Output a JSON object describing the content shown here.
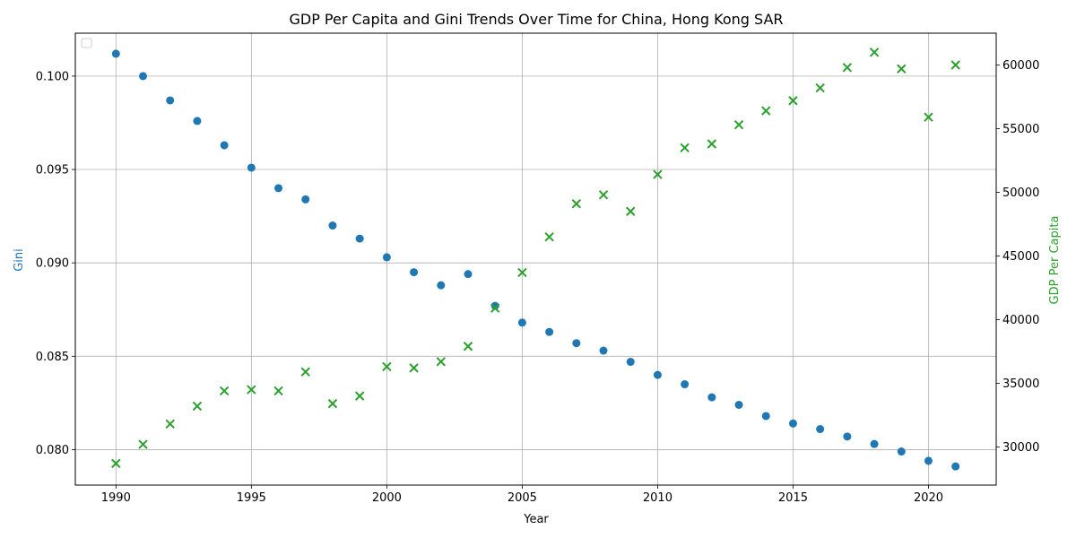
{
  "chart_data": {
    "type": "scatter",
    "title": "GDP Per Capita and Gini Trends Over Time for China, Hong Kong SAR",
    "xlabel": "Year",
    "ylabel_left": "Gini",
    "ylabel_right": "GDP Per Capita",
    "xlim": [
      1988.5,
      2022.5
    ],
    "ylim_left": [
      0.0781,
      0.1023
    ],
    "ylim_right": [
      27000,
      62500
    ],
    "x_ticks": [
      1990,
      1995,
      2000,
      2005,
      2010,
      2015,
      2020
    ],
    "y_left_ticks": [
      0.08,
      0.085,
      0.09,
      0.095,
      0.1
    ],
    "y_left_tick_labels": [
      "0.080",
      "0.085",
      "0.090",
      "0.095",
      "0.100"
    ],
    "y_right_ticks": [
      30000,
      35000,
      40000,
      45000,
      50000,
      55000,
      60000
    ],
    "y_right_tick_labels": [
      "30000",
      "35000",
      "40000",
      "45000",
      "50000",
      "55000",
      "60000"
    ],
    "grid": true,
    "legend": "top-left (empty)",
    "colors": {
      "gini": "#1f77b4",
      "gdp": "#2ca02c",
      "left_label": "#1f77b4",
      "right_label": "#2ca02c"
    },
    "series": [
      {
        "marker": "circle",
        "axis": "left",
        "x": [
          1990,
          1991,
          1992,
          1993,
          1994,
          1995,
          1996,
          1997,
          1998,
          1999,
          2000,
          2001,
          2002,
          2003,
          2004,
          2005,
          2006,
          2007,
          2008,
          2009,
          2010,
          2011,
          2012,
          2013,
          2014,
          2015,
          2016,
          2017,
          2018,
          2019,
          2020,
          2021
        ],
        "values": [
          0.1012,
          0.1,
          0.0987,
          0.0976,
          0.0963,
          0.0951,
          0.094,
          0.0934,
          0.092,
          0.0913,
          0.0903,
          0.0895,
          0.0888,
          0.0894,
          0.0877,
          0.0868,
          0.0863,
          0.0857,
          0.0853,
          0.0847,
          0.084,
          0.0835,
          0.0828,
          0.0824,
          0.0818,
          0.0814,
          0.0811,
          0.0807,
          0.0803,
          0.0799,
          0.0794,
          0.0791
        ]
      },
      {
        "marker": "x",
        "axis": "right",
        "x": [
          1990,
          1991,
          1992,
          1993,
          1994,
          1995,
          1996,
          1997,
          1998,
          1999,
          2000,
          2001,
          2002,
          2003,
          2004,
          2005,
          2006,
          2007,
          2008,
          2009,
          2010,
          2011,
          2012,
          2013,
          2014,
          2015,
          2016,
          2017,
          2018,
          2019,
          2020,
          2021
        ],
        "values": [
          28700,
          30200,
          31800,
          33200,
          34400,
          34500,
          34400,
          35900,
          33400,
          34000,
          36300,
          36200,
          36700,
          37900,
          40900,
          43700,
          46500,
          49100,
          49800,
          48500,
          51400,
          53500,
          53800,
          55300,
          56400,
          57200,
          58200,
          59800,
          61000,
          59700,
          55900,
          60000
        ]
      }
    ]
  }
}
